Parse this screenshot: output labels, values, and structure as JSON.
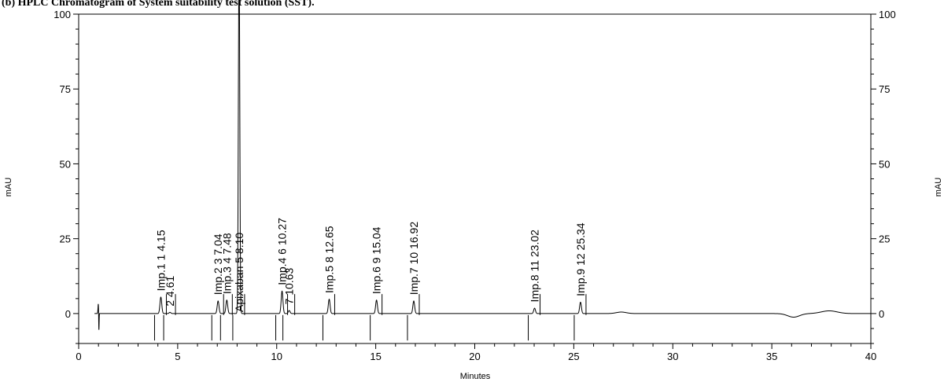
{
  "caption": "(b) HPLC Chromatogram of System suitability test solution (SST).",
  "chart_data": {
    "type": "line",
    "title": "",
    "xlabel": "Minutes",
    "ylabel_left": "mAU",
    "ylabel_right": "mAU",
    "xlim": [
      0,
      40
    ],
    "ylim": [
      -10,
      100
    ],
    "x_ticks": [
      0,
      5,
      10,
      15,
      20,
      25,
      30,
      35,
      40
    ],
    "x_tick_labels": [
      "0",
      "5",
      "10",
      "15",
      "20",
      "25",
      "30",
      "35",
      "40"
    ],
    "y_ticks": [
      0,
      25,
      50,
      75,
      100
    ],
    "y_tick_labels": [
      "0",
      "25",
      "50",
      "75",
      "100"
    ],
    "grid": false,
    "peaks": [
      {
        "label": "Imp.1  1  4.15",
        "rt": 4.15,
        "height": 5.5
      },
      {
        "label": "2  4.61",
        "rt": 4.61,
        "height": 0.4
      },
      {
        "label": "Imp.2  3  7.04",
        "rt": 7.04,
        "height": 4.2
      },
      {
        "label": "Imp.3  4  7.48",
        "rt": 7.48,
        "height": 4.5
      },
      {
        "label": "Apixaban  5  8.10",
        "rt": 8.1,
        "height": 120
      },
      {
        "label": "Imp.4  6  10.27",
        "rt": 10.27,
        "height": 7.5
      },
      {
        "label": "7  10.63",
        "rt": 10.63,
        "height": 1.0
      },
      {
        "label": "Imp.5  8  12.65",
        "rt": 12.65,
        "height": 4.8
      },
      {
        "label": "Imp.6  9  15.04",
        "rt": 15.04,
        "height": 4.5
      },
      {
        "label": "Imp.7  10  16.92",
        "rt": 16.92,
        "height": 4.2
      },
      {
        "label": "Imp.8  11  23.02",
        "rt": 23.02,
        "height": 1.8
      },
      {
        "label": "Imp.9  12  25.34",
        "rt": 25.34,
        "height": 3.8
      }
    ],
    "extra_features": [
      {
        "x": 1.0,
        "height": 4.0
      },
      {
        "x": 27.4,
        "height": 0.5
      },
      {
        "x": 36.1,
        "height": -1.2
      },
      {
        "x": 37.9,
        "height": 0.9
      }
    ],
    "colors": {
      "trace": "#000000"
    }
  }
}
